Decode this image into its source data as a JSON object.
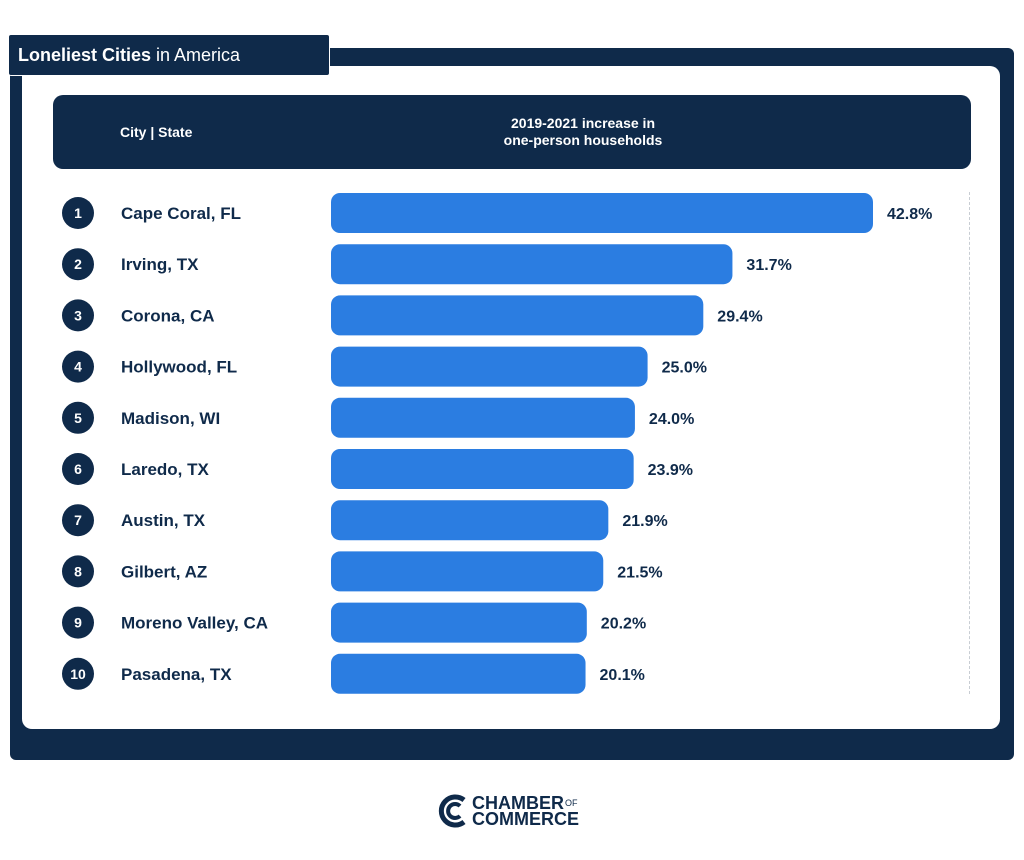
{
  "title": {
    "bold": "Loneliest Cities",
    "rest": "in America"
  },
  "header": {
    "city_col": "City | State",
    "metric_line1": "2019-2021 increase in",
    "metric_line2": "one-person households"
  },
  "chart_data": {
    "type": "bar",
    "orientation": "horizontal",
    "title": "Loneliest Cities in America",
    "value_label": "2019-2021 increase in one-person households",
    "ranks": [
      "1",
      "2",
      "3",
      "4",
      "5",
      "6",
      "7",
      "8",
      "9",
      "10"
    ],
    "categories": [
      "Cape Coral, FL",
      "Irving, TX",
      "Corona, CA",
      "Hollywood, FL",
      "Madison, WI",
      "Laredo, TX",
      "Austin, TX",
      "Gilbert, AZ",
      "Moreno Valley, CA",
      "Pasadena, TX"
    ],
    "values": [
      42.8,
      31.7,
      29.4,
      25.0,
      24.0,
      23.9,
      21.9,
      21.5,
      20.2,
      20.1
    ],
    "value_labels": [
      "42.8%",
      "31.7%",
      "29.4%",
      "25.0%",
      "24.0%",
      "23.9%",
      "21.9%",
      "21.5%",
      "20.2%",
      "20.1%"
    ],
    "bar_color": "#2b7de1",
    "text_color": "#0f2a4a"
  },
  "logo": {
    "line1": "CHAMBER",
    "of": "OF",
    "line2": "COMMERCE"
  }
}
